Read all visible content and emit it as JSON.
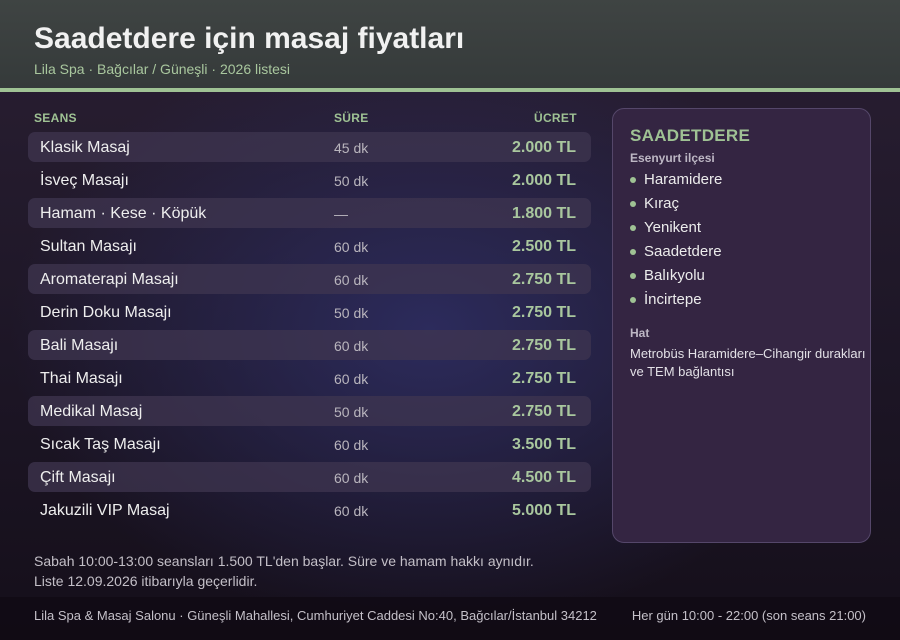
{
  "header": {
    "title": "Saadetdere için masaj fiyatları",
    "subtitle": "Lila Spa · Bağcılar / Güneşli · 2026 listesi"
  },
  "table": {
    "columns": [
      "SEANS",
      "SÜRE",
      "ÜCRET"
    ],
    "rows": [
      {
        "name": "Klasik Masaj",
        "duration": "45 dk",
        "price": "2.000 TL"
      },
      {
        "name": "İsveç Masajı",
        "duration": "50 dk",
        "price": "2.000 TL"
      },
      {
        "name": "Hamam · Kese · Köpük",
        "duration": "—",
        "price": "1.800 TL"
      },
      {
        "name": "Sultan Masajı",
        "duration": "60 dk",
        "price": "2.500 TL"
      },
      {
        "name": "Aromaterapi Masajı",
        "duration": "60 dk",
        "price": "2.750 TL"
      },
      {
        "name": "Derin Doku Masajı",
        "duration": "50 dk",
        "price": "2.750 TL"
      },
      {
        "name": "Bali Masajı",
        "duration": "60 dk",
        "price": "2.750 TL"
      },
      {
        "name": "Thai Masajı",
        "duration": "60 dk",
        "price": "2.750 TL"
      },
      {
        "name": "Medikal Masaj",
        "duration": "50 dk",
        "price": "2.750 TL"
      },
      {
        "name": "Sıcak Taş Masajı",
        "duration": "60 dk",
        "price": "3.500 TL"
      },
      {
        "name": "Çift Masajı",
        "duration": "60 dk",
        "price": "4.500 TL"
      },
      {
        "name": "Jakuzili VIP Masaj",
        "duration": "60 dk",
        "price": "5.000 TL"
      }
    ]
  },
  "panel": {
    "title": "SAADETDERE",
    "subtitle": "Esenyurt ilçesi",
    "places": [
      "Haramidere",
      "Kıraç",
      "Yenikent",
      "Saadetdere",
      "Balıkyolu",
      "İncirtepe"
    ],
    "hat_label": "Hat",
    "hat_text": "Metrobüs Haramidere–Cihangir durakları ve TEM bağlantısı"
  },
  "notes": [
    "Sabah 10:00-13:00 seansları 1.500 TL'den başlar. Süre ve hamam hakkı aynıdır.",
    "Liste 12.09.2026 itibarıyla geçerlidir."
  ],
  "footer": {
    "address": "Lila Spa & Masaj Salonu · Güneşli Mahallesi, Cumhuriyet Caddesi No:40, Bağcılar/İstanbul 34212",
    "hours": "Her gün 10:00 - 22:00 (son seans 21:00)"
  },
  "colors": {
    "accent": "#9fc294",
    "header_bg": "#3f4443",
    "panel_bg": "#342542",
    "row_alt_bg": "#403650"
  }
}
